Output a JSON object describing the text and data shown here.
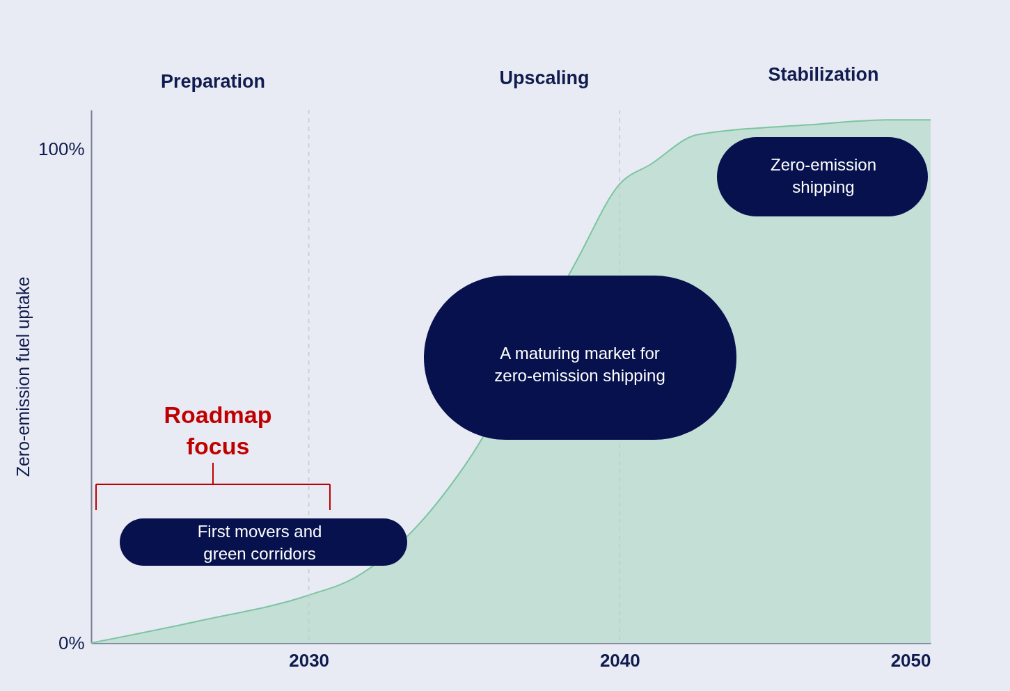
{
  "chart_data": {
    "type": "area",
    "ylabel": "Zero-emission fuel uptake",
    "x": [
      2023,
      2026.5,
      2030,
      2031.5,
      2033.5,
      2035,
      2038.6,
      2040,
      2041,
      2042.5,
      2046.1,
      2048.7,
      2050
    ],
    "series": [
      {
        "color": "#c3dfd6",
        "values": [
          0,
          4.5,
          9.7,
          13.3,
          23.8,
          35.8,
          77.3,
          93,
          97,
          103,
          105,
          106,
          106
        ]
      }
    ],
    "xlim": [
      2023,
      2050
    ],
    "xticks": [
      2030,
      2040,
      2050
    ],
    "ylim": [
      0,
      108
    ],
    "yticks": [
      {
        "value": 0,
        "label": "0%"
      },
      {
        "value": 100,
        "label": "100%"
      }
    ],
    "grid": false,
    "ref_lines": [
      {
        "axis": "x",
        "value": 2030,
        "color": "#c8c9d4",
        "line_style": "dashed"
      },
      {
        "axis": "x",
        "value": 2040,
        "color": "#c8c9d4",
        "line_style": "dashed"
      }
    ],
    "annotations": [
      "Preparation",
      "Upscaling",
      "Stabilization",
      "Roadmap\nfocus",
      "First movers and\ngreen corridors",
      "A maturing market for\nzero-emission shipping",
      "Zero-emission\nshipping"
    ]
  }
}
